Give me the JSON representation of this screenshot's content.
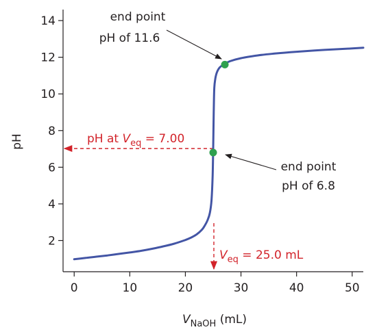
{
  "chart_data": {
    "type": "line",
    "title": "",
    "xlabel": {
      "main": "V",
      "sub": "NaOH",
      "unit": " (mL)"
    },
    "ylabel": "pH",
    "xlim": [
      -2,
      52
    ],
    "ylim": [
      0.3,
      14.6
    ],
    "xticks": [
      0,
      10,
      20,
      30,
      40,
      50
    ],
    "xtick_labels": [
      "0",
      "10",
      "20",
      "30",
      "40",
      "50"
    ],
    "yticks": [
      2,
      4,
      6,
      8,
      10,
      12,
      14
    ],
    "ytick_labels": [
      "2",
      "4",
      "6",
      "8",
      "10",
      "12",
      "14"
    ],
    "grid": false,
    "series": [
      {
        "color": "#4355a5",
        "x": [
          0,
          2,
          4,
          6,
          8,
          10,
          12,
          14,
          16,
          18,
          20,
          21,
          22,
          23,
          23.5,
          24,
          24.4,
          24.7,
          24.9,
          25.0,
          25.1,
          25.2,
          25.4,
          25.7,
          26.2,
          27,
          28,
          30,
          33,
          36,
          40,
          45,
          50,
          52
        ],
        "y": [
          0.98,
          1.05,
          1.12,
          1.19,
          1.27,
          1.35,
          1.44,
          1.55,
          1.68,
          1.83,
          2.03,
          2.16,
          2.33,
          2.6,
          2.82,
          3.12,
          3.5,
          4.2,
          5.5,
          7.0,
          9.0,
          10.3,
          10.85,
          11.2,
          11.45,
          11.62,
          11.78,
          11.95,
          12.1,
          12.2,
          12.3,
          12.4,
          12.48,
          12.52
        ]
      }
    ],
    "points": [
      {
        "x": 25.0,
        "y": 6.8,
        "color": "#2ea04f"
      },
      {
        "x": 27.1,
        "y": 11.6,
        "color": "#2ea04f"
      }
    ],
    "annotations": {
      "end1": {
        "line1": "end point",
        "line2": "pH of 11.6"
      },
      "end2": {
        "line1": "end point",
        "line2": "pH of 6.8"
      },
      "ph_at_veq": {
        "pre": "pH at ",
        "v": "V",
        "sub": "eq",
        "post": " = 7.00"
      },
      "veq": {
        "v": "V",
        "sub": "eq",
        "post": " = 25.0 mL"
      }
    },
    "colors": {
      "curve": "#4355a5",
      "marker": "#2ea04f",
      "annotation": "#d2232a",
      "axis": "#231f20"
    }
  }
}
